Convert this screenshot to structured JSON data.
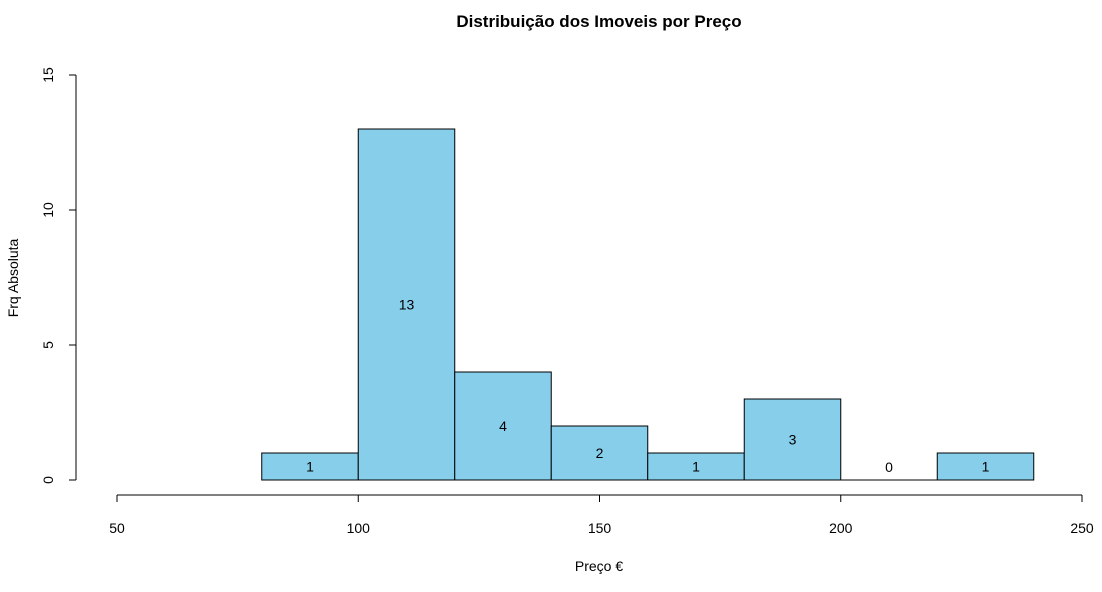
{
  "chart_data": {
    "type": "bar",
    "title": "Distribuição dos Imoveis por Preço",
    "xlabel": "Preço €",
    "ylabel": "Frq Absoluta",
    "xlim": [
      50,
      250
    ],
    "ylim": [
      0,
      15
    ],
    "x_ticks": [
      50,
      100,
      150,
      200,
      250
    ],
    "y_ticks": [
      0,
      5,
      10,
      15
    ],
    "bin_edges": [
      80,
      100,
      120,
      140,
      160,
      180,
      200,
      220,
      240
    ],
    "values": [
      1,
      13,
      4,
      2,
      1,
      3,
      0,
      1
    ],
    "bar_labels": [
      "1",
      "13",
      "4",
      "2",
      "1",
      "3",
      "0",
      "1"
    ],
    "bar_color": "#87CEEB",
    "grid": false,
    "legend": "none"
  }
}
